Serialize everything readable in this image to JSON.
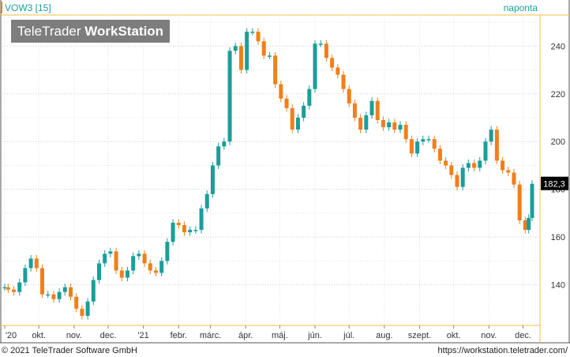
{
  "header": {
    "symbol": "VOW3 [15]",
    "interval": "naponta",
    "logo_light": "TeleTrader ",
    "logo_bold": "WorkStation"
  },
  "footer": {
    "copyright": "© 2021 TeleTrader Software GmbH",
    "url": "https://workstation.teletrader.com/"
  },
  "colors": {
    "up": "#1a9e9b",
    "down": "#f07f1a",
    "accent": "#1a9e9b",
    "marker": "#f07f1a"
  },
  "chart_data": {
    "type": "candlestick",
    "title": "VOW3 [15]",
    "xlabel": "",
    "ylabel": "",
    "ylim": [
      123,
      253
    ],
    "yticks": [
      140,
      160,
      180,
      200,
      220,
      240
    ],
    "last_value": 182.3,
    "last_label": "182,3",
    "grid": true,
    "x_tick_labels": [
      "'20",
      "okt.",
      "nov.",
      "dec.",
      "'21",
      "febr.",
      "márc.",
      "ápr.",
      "máj.",
      "jún.",
      "júl.",
      "aug.",
      "szept.",
      "okt.",
      "nov.",
      "dec."
    ],
    "series": [
      {
        "values": [
          [
            "2020-09-01",
            139
          ],
          [
            "2020-09-04",
            138
          ],
          [
            "2020-09-09",
            137
          ],
          [
            "2020-09-14",
            141
          ],
          [
            "2020-09-19",
            147
          ],
          [
            "2020-09-24",
            151
          ],
          [
            "2020-09-29",
            147
          ],
          [
            "2020-10-04",
            136
          ],
          [
            "2020-10-09",
            136
          ],
          [
            "2020-10-14",
            134
          ],
          [
            "2020-10-19",
            137
          ],
          [
            "2020-10-24",
            139
          ],
          [
            "2020-10-29",
            135
          ],
          [
            "2020-11-03",
            130
          ],
          [
            "2020-11-08",
            127
          ],
          [
            "2020-11-13",
            133
          ],
          [
            "2020-11-18",
            142
          ],
          [
            "2020-11-23",
            149
          ],
          [
            "2020-11-28",
            153
          ],
          [
            "2020-12-03",
            154
          ],
          [
            "2020-12-08",
            146
          ],
          [
            "2020-12-13",
            143
          ],
          [
            "2020-12-18",
            146
          ],
          [
            "2020-12-23",
            152
          ],
          [
            "2020-12-28",
            153
          ],
          [
            "2021-01-02",
            149
          ],
          [
            "2021-01-07",
            146
          ],
          [
            "2021-01-12",
            145
          ],
          [
            "2021-01-17",
            150
          ],
          [
            "2021-01-22",
            158
          ],
          [
            "2021-01-27",
            166
          ],
          [
            "2021-02-01",
            165
          ],
          [
            "2021-02-06",
            162
          ],
          [
            "2021-02-11",
            163
          ],
          [
            "2021-02-16",
            163
          ],
          [
            "2021-02-21",
            172
          ],
          [
            "2021-02-26",
            178
          ],
          [
            "2021-03-03",
            190
          ],
          [
            "2021-03-08",
            198
          ],
          [
            "2021-03-13",
            200
          ],
          [
            "2021-03-18",
            238
          ],
          [
            "2021-03-23",
            240
          ],
          [
            "2021-03-28",
            230
          ],
          [
            "2021-04-02",
            246
          ],
          [
            "2021-04-07",
            246
          ],
          [
            "2021-04-12",
            242
          ],
          [
            "2021-04-17",
            236
          ],
          [
            "2021-04-22",
            236
          ],
          [
            "2021-04-27",
            224
          ],
          [
            "2021-05-02",
            218
          ],
          [
            "2021-05-07",
            214
          ],
          [
            "2021-05-12",
            205
          ],
          [
            "2021-05-17",
            210
          ],
          [
            "2021-05-22",
            215
          ],
          [
            "2021-05-27",
            222
          ],
          [
            "2021-06-01",
            241
          ],
          [
            "2021-06-06",
            241
          ],
          [
            "2021-06-11",
            235
          ],
          [
            "2021-06-16",
            231
          ],
          [
            "2021-06-21",
            228
          ],
          [
            "2021-06-26",
            222
          ],
          [
            "2021-07-01",
            216
          ],
          [
            "2021-07-06",
            210
          ],
          [
            "2021-07-11",
            205
          ],
          [
            "2021-07-16",
            211
          ],
          [
            "2021-07-21",
            217
          ],
          [
            "2021-07-26",
            209
          ],
          [
            "2021-07-31",
            206
          ],
          [
            "2021-08-05",
            208
          ],
          [
            "2021-08-10",
            205
          ],
          [
            "2021-08-15",
            207
          ],
          [
            "2021-08-20",
            201
          ],
          [
            "2021-08-25",
            195
          ],
          [
            "2021-08-30",
            200
          ],
          [
            "2021-09-04",
            201
          ],
          [
            "2021-09-09",
            201
          ],
          [
            "2021-09-14",
            197
          ],
          [
            "2021-09-19",
            192
          ],
          [
            "2021-09-24",
            190
          ],
          [
            "2021-09-29",
            186
          ],
          [
            "2021-10-04",
            181
          ],
          [
            "2021-10-09",
            189
          ],
          [
            "2021-10-14",
            191
          ],
          [
            "2021-10-19",
            189
          ],
          [
            "2021-10-24",
            192
          ],
          [
            "2021-10-29",
            200
          ],
          [
            "2021-11-03",
            205
          ],
          [
            "2021-11-08",
            192
          ],
          [
            "2021-11-13",
            188
          ],
          [
            "2021-11-18",
            187
          ],
          [
            "2021-11-23",
            182
          ],
          [
            "2021-11-28",
            167
          ],
          [
            "2021-12-03",
            163
          ],
          [
            "2021-12-06",
            168
          ],
          [
            "2021-12-09",
            182.3
          ]
        ]
      }
    ]
  }
}
